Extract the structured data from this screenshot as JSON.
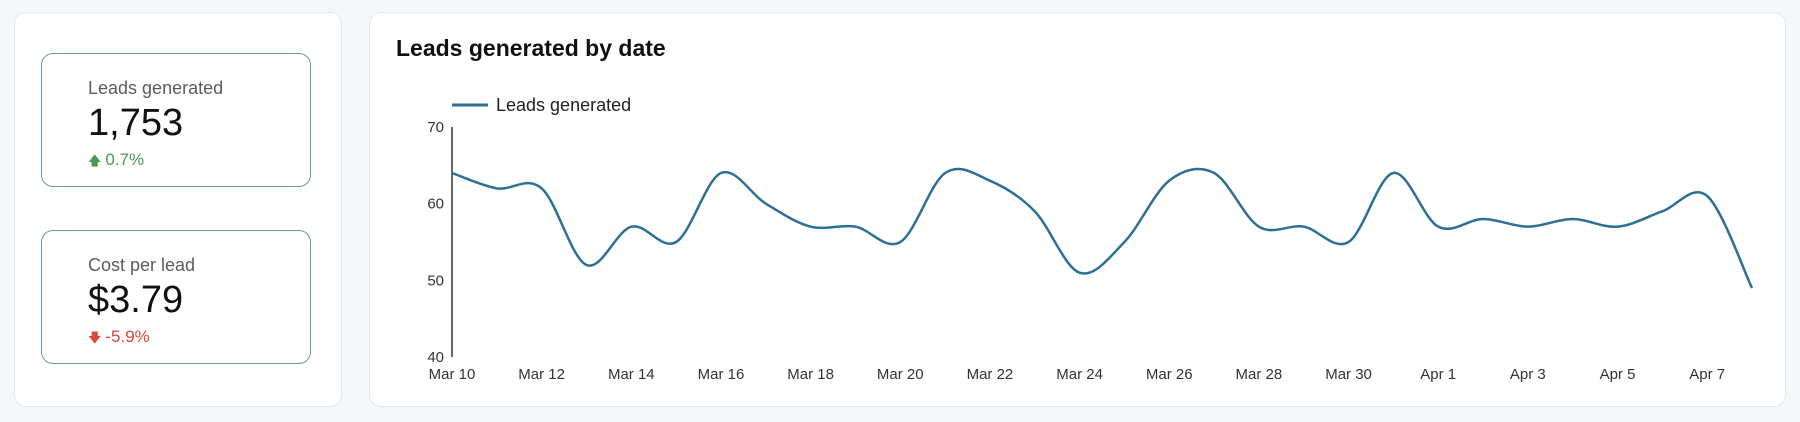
{
  "kpis": [
    {
      "label": "Leads generated",
      "value": "1,753",
      "delta": "0.7%",
      "direction": "up",
      "color": "#4a9a4e"
    },
    {
      "label": "Cost per lead",
      "value": "$3.79",
      "delta": "-5.9%",
      "direction": "down",
      "color": "#d9463b"
    }
  ],
  "chart_data": {
    "type": "line",
    "title": "Leads generated by date",
    "xlabel": "",
    "ylabel": "",
    "ylim": [
      40,
      70
    ],
    "yticks": [
      40,
      50,
      60,
      70
    ],
    "grid": false,
    "legend": "top-left",
    "x_tick_labels": [
      "Mar 10",
      "Mar 12",
      "Mar 14",
      "Mar 16",
      "Mar 18",
      "Mar 20",
      "Mar 22",
      "Mar 24",
      "Mar 26",
      "Mar 28",
      "Mar 30",
      "Apr 1",
      "Apr 3",
      "Apr 5",
      "Apr 7"
    ],
    "x": [
      "Mar 10",
      "Mar 11",
      "Mar 12",
      "Mar 13",
      "Mar 14",
      "Mar 15",
      "Mar 16",
      "Mar 17",
      "Mar 18",
      "Mar 19",
      "Mar 20",
      "Mar 21",
      "Mar 22",
      "Mar 23",
      "Mar 24",
      "Mar 25",
      "Mar 26",
      "Mar 27",
      "Mar 28",
      "Mar 29",
      "Mar 30",
      "Mar 31",
      "Apr 1",
      "Apr 2",
      "Apr 3",
      "Apr 4",
      "Apr 5",
      "Apr 6",
      "Apr 7",
      "Apr 8"
    ],
    "series": [
      {
        "name": "Leads generated",
        "color": "#2e6f96",
        "values": [
          64,
          62,
          62,
          52,
          57,
          55,
          64,
          60,
          57,
          57,
          55,
          64,
          63,
          59,
          51,
          55,
          63,
          64,
          57,
          57,
          55,
          64,
          57,
          58,
          57,
          58,
          57,
          59,
          61,
          49
        ]
      }
    ]
  }
}
